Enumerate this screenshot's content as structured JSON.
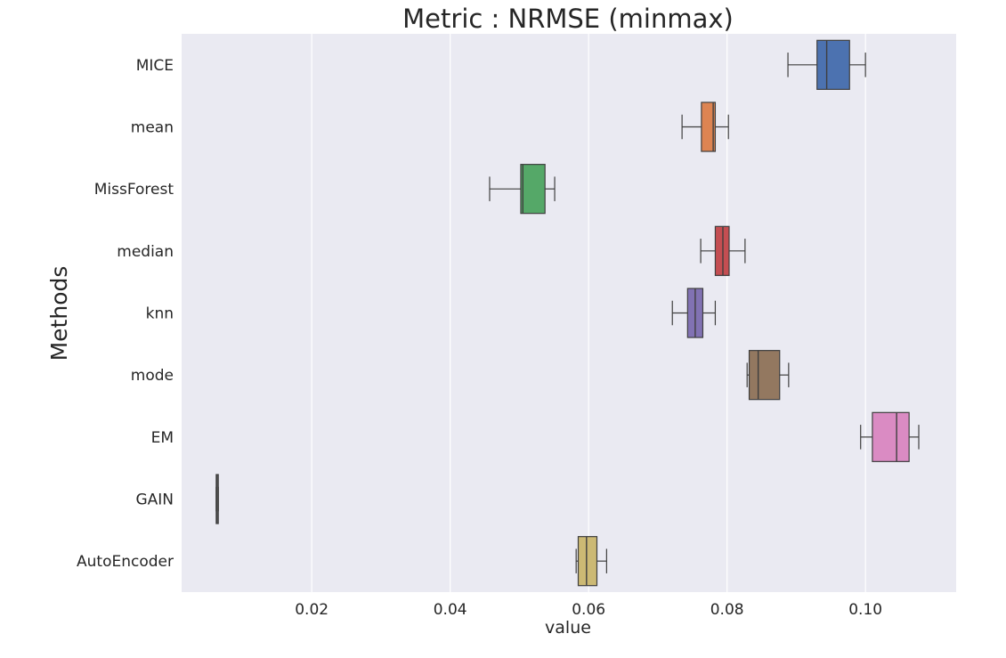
{
  "chart_data": {
    "type": "boxplot",
    "orientation": "horizontal",
    "title": "Metric : NRMSE (minmax)",
    "xlabel": "value",
    "ylabel": "Methods",
    "xlim": [
      0.0012,
      0.1131
    ],
    "xticks": [
      0.02,
      0.04,
      0.06,
      0.08,
      0.1
    ],
    "xtick_labels": [
      "0.02",
      "0.04",
      "0.06",
      "0.08",
      "0.10"
    ],
    "grid": "vertical",
    "background": "#eaeaf2",
    "categories": [
      "MICE",
      "mean",
      "MissForest",
      "median",
      "knn",
      "mode",
      "EM",
      "GAIN",
      "AutoEncoder"
    ],
    "boxes": [
      {
        "name": "MICE",
        "whislo": 0.0888,
        "q1": 0.093,
        "med": 0.0944,
        "q3": 0.0977,
        "whishi": 0.1,
        "color": "#4c72b0"
      },
      {
        "name": "mean",
        "whislo": 0.0735,
        "q1": 0.0763,
        "med": 0.078,
        "q3": 0.0783,
        "whishi": 0.0802,
        "color": "#dd8452"
      },
      {
        "name": "MissForest",
        "whislo": 0.0457,
        "q1": 0.0502,
        "med": 0.0505,
        "q3": 0.0537,
        "whishi": 0.0551,
        "color": "#55a868"
      },
      {
        "name": "median",
        "whislo": 0.0762,
        "q1": 0.0783,
        "med": 0.0794,
        "q3": 0.0803,
        "whishi": 0.0826,
        "color": "#c44e52"
      },
      {
        "name": "knn",
        "whislo": 0.0721,
        "q1": 0.0743,
        "med": 0.0754,
        "q3": 0.0765,
        "whishi": 0.0783,
        "color": "#8172b3"
      },
      {
        "name": "mode",
        "whislo": 0.0829,
        "q1": 0.0832,
        "med": 0.0845,
        "q3": 0.0876,
        "whishi": 0.0889,
        "color": "#937860"
      },
      {
        "name": "EM",
        "whislo": 0.0993,
        "q1": 0.101,
        "med": 0.1045,
        "q3": 0.1063,
        "whishi": 0.1077,
        "color": "#da8bc3"
      },
      {
        "name": "GAIN",
        "whislo": 0.0062,
        "q1": 0.0062,
        "med": 0.0063,
        "q3": 0.0065,
        "whishi": 0.0065,
        "color": "#8c8c8c"
      },
      {
        "name": "AutoEncoder",
        "whislo": 0.0582,
        "q1": 0.0585,
        "med": 0.0597,
        "q3": 0.0612,
        "whishi": 0.0626,
        "color": "#ccb974"
      }
    ]
  }
}
